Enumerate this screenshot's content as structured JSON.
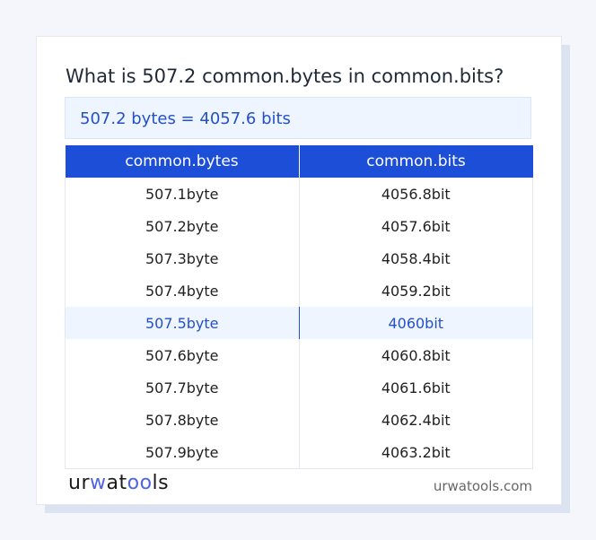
{
  "title": "What is 507.2 common.bytes in common.bits?",
  "result": "507.2 bytes = 4057.6 bits",
  "table": {
    "headers": [
      "common.bytes",
      "common.bits"
    ],
    "rows": [
      [
        "507.1byte",
        "4056.8bit"
      ],
      [
        "507.2byte",
        "4057.6bit"
      ],
      [
        "507.3byte",
        "4058.4bit"
      ],
      [
        "507.4byte",
        "4059.2bit"
      ],
      [
        "507.5byte",
        "4060bit"
      ],
      [
        "507.6byte",
        "4060.8bit"
      ],
      [
        "507.7byte",
        "4061.6bit"
      ],
      [
        "507.8byte",
        "4062.4bit"
      ],
      [
        "507.9byte",
        "4063.2bit"
      ]
    ],
    "highlighted_row": 4
  },
  "footer": {
    "logo": "urwatools",
    "site": "urwatools.com"
  },
  "colors": {
    "accent": "#1d4ed8",
    "highlight_bg": "#eef5fe",
    "highlight_text": "#2450c8"
  }
}
